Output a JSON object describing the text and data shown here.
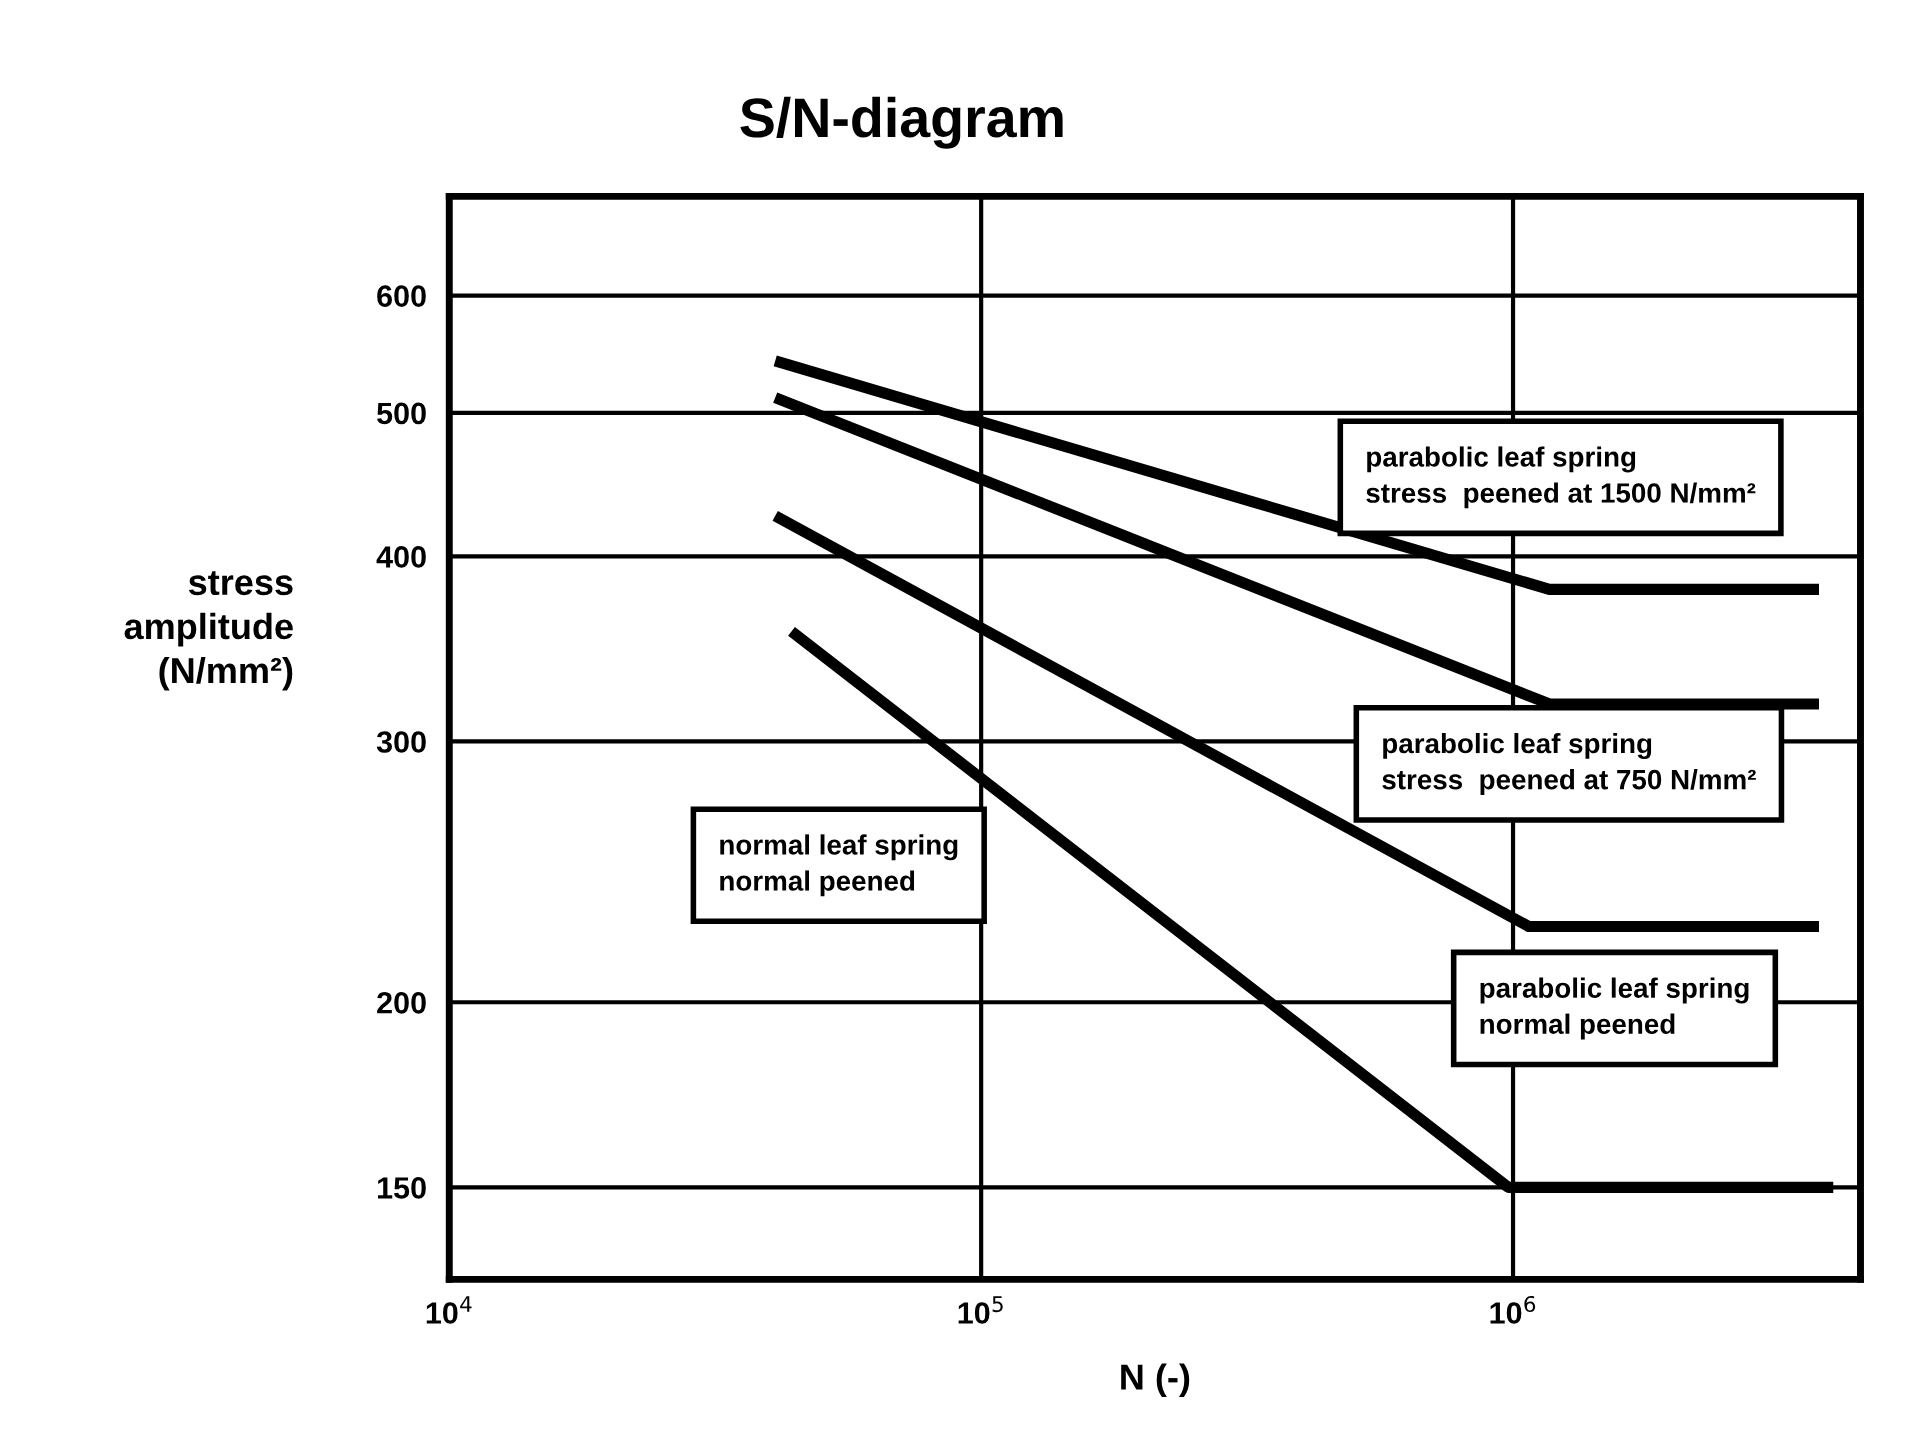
{
  "chart_data": {
    "type": "line",
    "title": "S/N-diagram",
    "xlabel": "N (-)",
    "ylabel": "stress\namplitude\n(N/mm²)",
    "log": "xy",
    "xlim": [
      10000,
      4500000
    ],
    "ylim": [
      130,
      700
    ],
    "xticks": [
      {
        "value": 10000,
        "label": "10$^{4}$"
      },
      {
        "value": 100000,
        "label": "10$^{5}$"
      },
      {
        "value": 1000000,
        "label": "10$^{6}$"
      }
    ],
    "yticks": [
      150,
      200,
      300,
      400,
      500,
      600
    ],
    "grid": true,
    "marker": "none",
    "line_style": "solid",
    "series": [
      {
        "name": "parabolic leaf spring\nstress  peened at 1500 N/mm²",
        "color": "#000000",
        "x": [
          41000,
          1170000,
          3760000
        ],
        "values": [
          542,
          380,
          380
        ]
      },
      {
        "name": "parabolic leaf spring\nstress  peened at 750 N/mm²",
        "color": "#000000",
        "x": [
          41000,
          1170000,
          3760000
        ],
        "values": [
          512,
          318,
          318
        ]
      },
      {
        "name": "parabolic leaf spring\nnormal peened",
        "color": "#000000",
        "x": [
          41000,
          1070000,
          3760000
        ],
        "values": [
          426,
          225,
          225
        ]
      },
      {
        "name": "normal leaf spring\nnormal peened",
        "color": "#000000",
        "x": [
          44000,
          980000,
          4000000
        ],
        "values": [
          356,
          150,
          150
        ]
      }
    ]
  }
}
